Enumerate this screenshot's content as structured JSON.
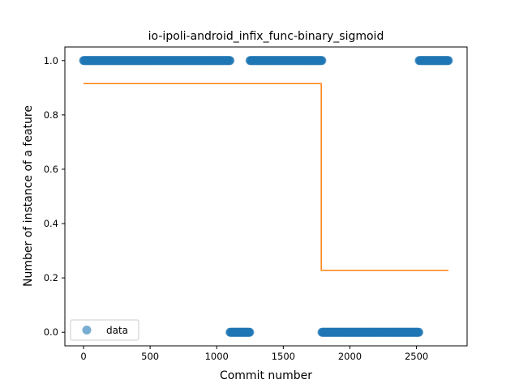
{
  "chart_data": {
    "type": "scatter",
    "title": "io-ipoli-android_infix_func-binary_sigmoid",
    "xlabel": "Commit number",
    "ylabel": "Number of instance of a feature",
    "xlim": [
      -140,
      2880
    ],
    "ylim": [
      -0.05,
      1.05
    ],
    "xticks": [
      0,
      500,
      1000,
      1500,
      2000,
      2500
    ],
    "yticks": [
      0.0,
      0.2,
      0.4,
      0.6,
      0.8,
      1.0
    ],
    "xtick_labels": [
      "0",
      "500",
      "1000",
      "1500",
      "2000",
      "2500"
    ],
    "ytick_labels": [
      "0.0",
      "0.2",
      "0.4",
      "0.6",
      "0.8",
      "1.0"
    ],
    "grid": false,
    "legend": {
      "position": "lower-left",
      "entries": [
        "data"
      ]
    },
    "series": [
      {
        "name": "data",
        "kind": "points",
        "color": "#1f77b4",
        "segments": [
          {
            "x_start": 0,
            "x_end": 1100,
            "y": 1.0
          },
          {
            "x_start": 1100,
            "x_end": 1250,
            "y": 0.0
          },
          {
            "x_start": 1250,
            "x_end": 1790,
            "y": 1.0
          },
          {
            "x_start": 1790,
            "x_end": 2520,
            "y": 0.0
          },
          {
            "x_start": 2520,
            "x_end": 2740,
            "y": 1.0
          }
        ]
      },
      {
        "kind": "line",
        "color": "#ff7f0e",
        "points": [
          [
            0,
            0.915
          ],
          [
            1785,
            0.915
          ],
          [
            1785,
            0.228
          ],
          [
            2740,
            0.228
          ]
        ]
      }
    ]
  }
}
